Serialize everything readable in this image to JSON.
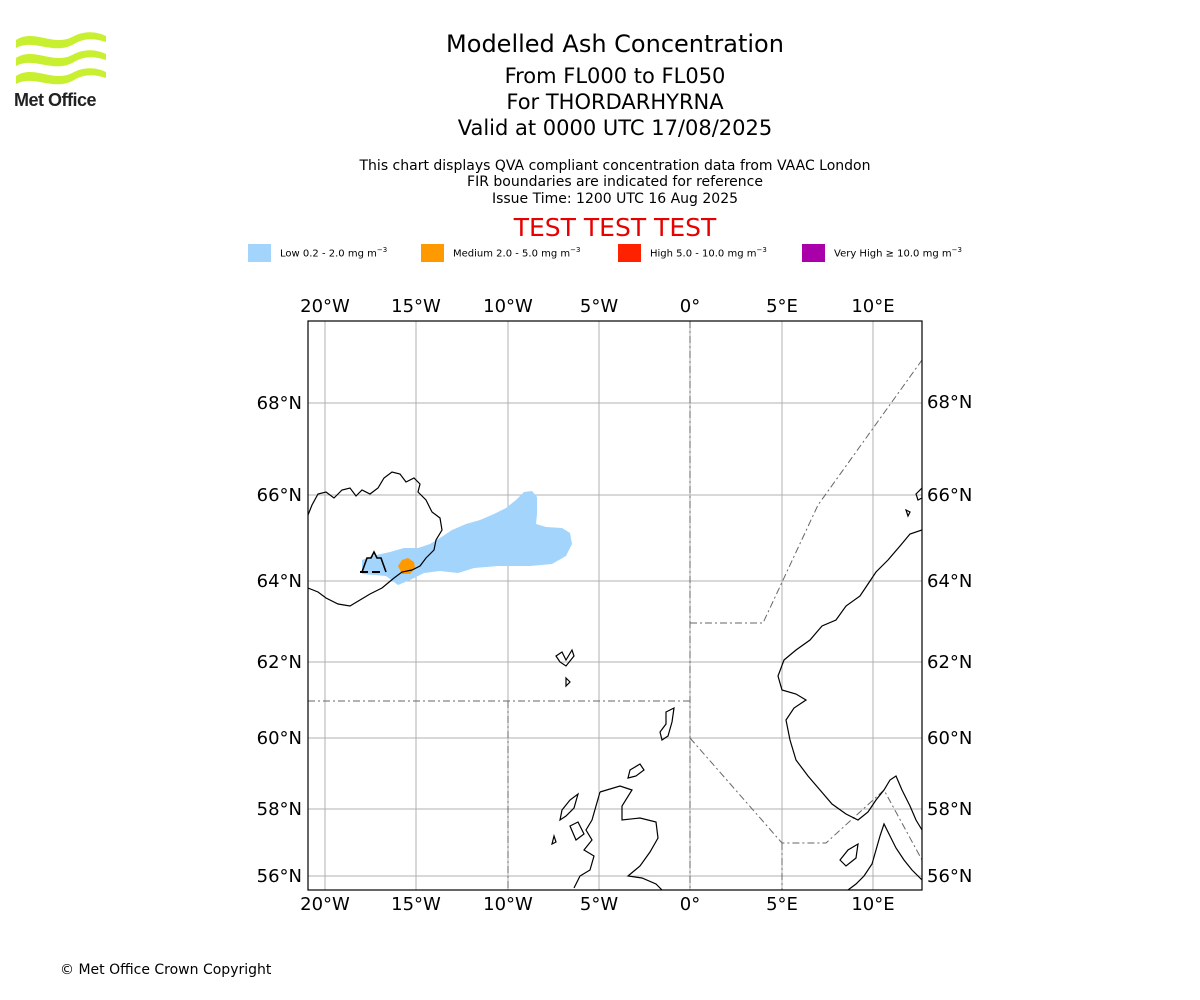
{
  "brand": {
    "name": "Met Office"
  },
  "header": {
    "title": "Modelled Ash Concentration",
    "levels": "From FL000 to FL050",
    "location": "For THORDARHYRNA",
    "valid": "Valid at 0000 UTC 17/08/2025",
    "desc1": "This chart displays QVA compliant concentration data from VAAC London",
    "desc2": "FIR boundaries are indicated for reference",
    "issue": "Issue Time: 1200 UTC 16 Aug 2025",
    "test_banner": "TEST TEST TEST"
  },
  "legend": [
    {
      "label": "Low 0.2 - 2.0 mg m",
      "sup": "−3",
      "color": "#a3d4fc"
    },
    {
      "label": "Medium 2.0 - 5.0 mg m",
      "sup": "−3",
      "color": "#ff9900"
    },
    {
      "label": "High 5.0 - 10.0 mg m",
      "sup": "−3",
      "color": "#ff2200"
    },
    {
      "label": "Very High  ≥  10.0 mg m",
      "sup": "−3",
      "color": "#aa00aa"
    }
  ],
  "map": {
    "lon_ticks": [
      "20°W",
      "15°W",
      "10°W",
      "5°W",
      "0°",
      "5°E",
      "10°E"
    ],
    "lat_ticks": [
      "68°N",
      "66°N",
      "64°N",
      "62°N",
      "60°N",
      "58°N",
      "56°N"
    ],
    "volcano_icon": "volcano-icon"
  },
  "footer": {
    "copyright": "© Met Office Crown Copyright"
  }
}
